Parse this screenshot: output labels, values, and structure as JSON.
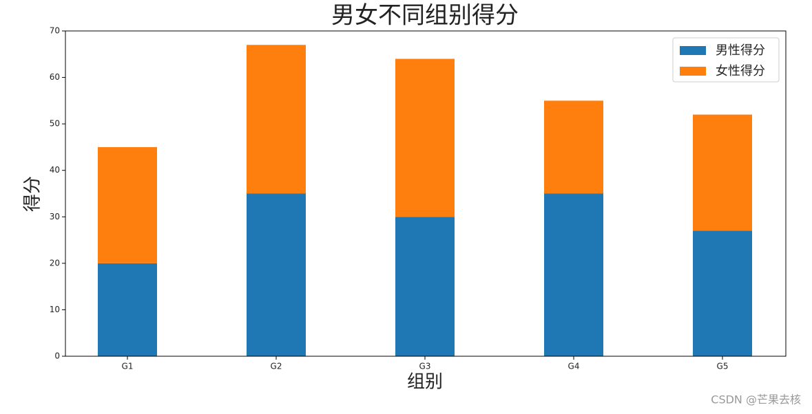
{
  "chart_data": {
    "type": "stacked_bar",
    "title": "男女不同组别得分",
    "xlabel": "组别",
    "ylabel": "得分",
    "categories": [
      "G1",
      "G2",
      "G3",
      "G4",
      "G5"
    ],
    "series": [
      {
        "name": "男性得分",
        "color": "#1f77b4",
        "values": [
          20,
          35,
          30,
          35,
          27
        ]
      },
      {
        "name": "女性得分",
        "color": "#ff7f0e",
        "values": [
          25,
          32,
          34,
          20,
          25
        ]
      }
    ],
    "ylim": [
      0,
      70
    ],
    "yticks": [
      0,
      10,
      20,
      30,
      40,
      50,
      60,
      70
    ],
    "legend": "upper right",
    "watermark": "CSDN @芒果去核"
  }
}
